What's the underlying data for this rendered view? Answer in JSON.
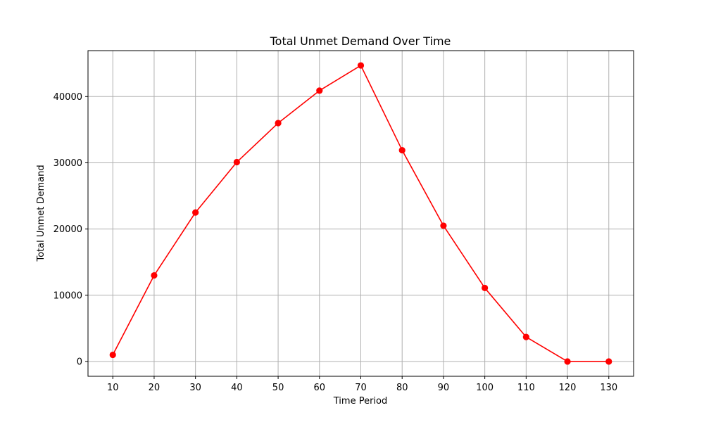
{
  "chart_data": {
    "type": "line",
    "title": "Total Unmet Demand Over Time",
    "xlabel": "Time Period",
    "ylabel": "Total Unmet Demand",
    "x": [
      10,
      20,
      30,
      40,
      50,
      60,
      70,
      80,
      90,
      100,
      110,
      120,
      130
    ],
    "series": [
      {
        "values": [
          1000,
          13000,
          22500,
          30100,
          36000,
          40900,
          44700,
          31900,
          20500,
          11100,
          3700,
          0,
          0
        ],
        "color": "#ff0000",
        "marker": "circle"
      }
    ],
    "xticks": [
      "10",
      "20",
      "30",
      "40",
      "50",
      "60",
      "70",
      "80",
      "90",
      "100",
      "110",
      "120",
      "130"
    ],
    "yticks": [
      "0",
      "10000",
      "20000",
      "30000",
      "40000"
    ],
    "xlim": [
      4,
      136
    ],
    "ylim": [
      -2235,
      46935
    ],
    "grid": true,
    "legend": "none"
  }
}
